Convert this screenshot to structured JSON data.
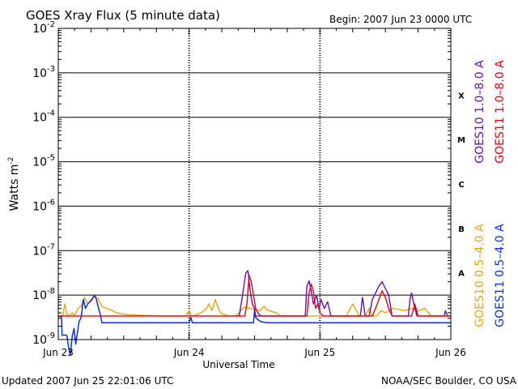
{
  "chart_data": {
    "type": "line",
    "title": "GOES Xray Flux (5 minute data)",
    "begin_label": "Begin:  2007 Jun 23 0000 UTC",
    "xlabel": "Universal Time",
    "ylabel": "Watts m",
    "ylabel_sup": "-2",
    "footer_left": "Updated 2007 Jun 25 22:01:06 UTC",
    "footer_right": "NOAA/SEC Boulder, CO USA",
    "x_unit": "hours since 2007 Jun 23 0000 UTC",
    "xlim": [
      0,
      72
    ],
    "ylim_log10": [
      -9,
      -2
    ],
    "y_scale": "log",
    "x_ticks": [
      {
        "label": "Jun 23",
        "value": 0
      },
      {
        "label": "Jun 24",
        "value": 24
      },
      {
        "label": "Jun 25",
        "value": 48
      },
      {
        "label": "Jun 26",
        "value": 72
      }
    ],
    "y_ticks": [
      {
        "base": "10",
        "exp": "-2",
        "value": -2
      },
      {
        "base": "10",
        "exp": "-3",
        "value": -3
      },
      {
        "base": "10",
        "exp": "-4",
        "value": -4
      },
      {
        "base": "10",
        "exp": "-5",
        "value": -5
      },
      {
        "base": "10",
        "exp": "-6",
        "value": -6
      },
      {
        "base": "10",
        "exp": "-7",
        "value": -7
      },
      {
        "base": "10",
        "exp": "-8",
        "value": -8
      },
      {
        "base": "10",
        "exp": "-9",
        "value": -9
      }
    ],
    "flare_classes": [
      {
        "label": "X",
        "value": -3.5
      },
      {
        "label": "M",
        "value": -4.5
      },
      {
        "label": "C",
        "value": -5.5
      },
      {
        "label": "B",
        "value": -6.5
      },
      {
        "label": "A",
        "value": -7.5
      }
    ],
    "legend": [
      {
        "label": "GOES10 1.0–8.0 A",
        "color": "#6a0dad"
      },
      {
        "label": "GOES11 1.0–8.0 A",
        "color": "#e8000f"
      },
      {
        "label": "GOES10 0.5–4.0 A",
        "color": "#f2a20a"
      },
      {
        "label": "GOES11 0.5–4.0 A",
        "color": "#0b2fd6"
      }
    ],
    "series": [
      {
        "name": "GOES10 0.5–4.0 A",
        "color": "#f2a20a",
        "x": [
          0,
          0.5,
          0.9,
          1.2,
          1.6,
          1.9,
          2.6,
          3.0,
          3.6,
          4.2,
          4.8,
          5.4,
          6.0,
          6.8,
          7.4,
          8.0,
          8.8,
          9.6,
          10.8,
          12.0,
          14.4,
          16.8,
          19.2,
          21.6,
          23.4,
          24.0,
          24.4,
          24.8,
          25.6,
          26.4,
          27.2,
          27.6,
          28.2,
          28.8,
          29.2,
          29.8,
          30.2,
          30.8,
          31.3,
          31.8,
          32.4,
          33.0,
          33.6,
          34.2,
          35.2,
          36.0,
          37.0,
          37.4,
          37.8,
          38.2,
          39.0,
          40.0,
          40.8,
          41.6,
          42.4,
          43.2,
          44.0,
          45.6,
          47.0,
          47.8,
          48.4,
          48.8,
          49.2,
          50.4,
          51.6,
          52.8,
          54.0,
          55.2,
          56.4,
          57.0,
          57.6,
          58.4,
          59.2,
          60.0,
          61.2,
          62.4,
          63.6,
          64.8,
          66.0,
          67.2,
          68.4,
          69.6,
          70.8,
          72.0
        ],
        "y": [
          -8.48,
          -8.48,
          -8.42,
          -8.2,
          -8.45,
          -8.47,
          -8.4,
          -8.47,
          -8.3,
          -8.25,
          -8.05,
          -8.2,
          -8.1,
          -8.02,
          -8.1,
          -8.25,
          -8.3,
          -8.33,
          -8.4,
          -8.43,
          -8.45,
          -8.46,
          -8.47,
          -8.47,
          -8.47,
          -8.35,
          -8.47,
          -8.47,
          -8.43,
          -8.38,
          -8.3,
          -8.2,
          -8.35,
          -8.1,
          -8.25,
          -8.4,
          -8.43,
          -8.45,
          -8.47,
          -8.47,
          -8.47,
          -8.42,
          -8.33,
          -8.27,
          -8.3,
          -8.33,
          -8.35,
          -8.3,
          -8.25,
          -8.33,
          -8.36,
          -8.4,
          -8.47,
          -8.47,
          -8.47,
          -8.47,
          -8.47,
          -8.47,
          -8.47,
          -8.47,
          -8.47,
          -8.47,
          -8.47,
          -8.47,
          -8.47,
          -8.47,
          -8.2,
          -8.47,
          -8.47,
          -8.3,
          -8.47,
          -8.47,
          -8.35,
          -8.4,
          -8.3,
          -8.32,
          -8.35,
          -8.3,
          -8.36,
          -8.3,
          -8.47,
          -8.47,
          -8.47,
          -8.47
        ]
      },
      {
        "name": "GOES11 0.5–4.0 A",
        "color": "#0b2fd6",
        "x": [
          0,
          0.6,
          0.7,
          1.0,
          1.2,
          1.4,
          1.6,
          1.8,
          2.0,
          2.2,
          2.4,
          2.6,
          2.9,
          3.2,
          3.5,
          3.8,
          4.2,
          4.6,
          5.0,
          5.4,
          5.8,
          6.2,
          6.6,
          7.0,
          7.4,
          7.8,
          8.0,
          24.0,
          24.3,
          24.6,
          24.9,
          25.2,
          28.8,
          30.0,
          31.2,
          32.4,
          33.6,
          34.8,
          35.8,
          36.0,
          36.2,
          36.6,
          37.2,
          38.4,
          40.8,
          43.2,
          45.6,
          48.0,
          48.6,
          49.2,
          50.4,
          52.8,
          55.2,
          57.6,
          60.0,
          62.4,
          64.8,
          67.2,
          69.6,
          72.0
        ],
        "y": [
          -8.48,
          -8.48,
          -8.9,
          -8.9,
          -8.9,
          -8.9,
          -8.92,
          -9.1,
          -9.25,
          -9.35,
          -9.1,
          -8.9,
          -8.75,
          -9.1,
          -8.85,
          -8.6,
          -8.5,
          -8.1,
          -8.3,
          -8.2,
          -8.15,
          -8.1,
          -8.0,
          -8.1,
          -8.3,
          -8.48,
          -8.62,
          -8.62,
          -8.5,
          -8.62,
          -8.62,
          -8.62,
          -8.62,
          -8.62,
          -8.62,
          -8.62,
          -8.62,
          -8.62,
          -8.62,
          -8.35,
          -8.5,
          -8.55,
          -8.6,
          -8.62,
          -8.62,
          -8.62,
          -8.62,
          -8.62,
          -8.62,
          -8.62,
          -8.62,
          -8.62,
          -8.62,
          -8.62,
          -8.62,
          -8.62,
          -8.62,
          -8.62,
          -8.62,
          -8.62
        ]
      },
      {
        "name": "GOES10 1.0–8.0 A",
        "color": "#6a0dad",
        "x": [
          32.6,
          33.2,
          33.8,
          34.4,
          34.8,
          35.2,
          35.6,
          36.0,
          36.2,
          45.0,
          45.3,
          45.6,
          46.0,
          46.4,
          46.8,
          47.4,
          47.8,
          48.2,
          48.8,
          49.4,
          50.0,
          50.6,
          51.2,
          52.0,
          53.0,
          54.0,
          55.0,
          55.4,
          55.8,
          56.3,
          57.0,
          57.6,
          58.0,
          58.4,
          58.8,
          59.4,
          60.0,
          60.6,
          61.2,
          61.8,
          62.4,
          63.0,
          63.6,
          64.2,
          64.5,
          64.8,
          65.2,
          65.8,
          66.4,
          67.0,
          67.6,
          68.2,
          69.0,
          70.8,
          71.0,
          71.4,
          72.0
        ],
        "y": [
          -8.47,
          -8.47,
          -8.0,
          -7.5,
          -7.45,
          -7.9,
          -8.2,
          -8.3,
          -8.47,
          -8.47,
          -8.47,
          -7.8,
          -7.68,
          -7.9,
          -8.2,
          -8.0,
          -8.3,
          -8.1,
          -8.3,
          -8.15,
          -8.47,
          -8.47,
          -8.47,
          -8.47,
          -8.47,
          -8.47,
          -8.47,
          -8.47,
          -8.05,
          -8.47,
          -8.47,
          -8.1,
          -8.0,
          -7.9,
          -7.8,
          -7.7,
          -7.85,
          -8.0,
          -8.47,
          -8.47,
          -8.47,
          -8.47,
          -8.47,
          -8.47,
          -8.1,
          -7.95,
          -8.2,
          -8.47,
          -8.47,
          -8.47,
          -8.47,
          -8.47,
          -8.47,
          -8.47,
          -8.35,
          -8.47,
          -8.47
        ]
      },
      {
        "name": "GOES11 1.0–8.0 A",
        "color": "#e8000f",
        "x": [
          0,
          2.4,
          4.8,
          7.2,
          9.6,
          12.0,
          14.4,
          16.8,
          19.2,
          21.6,
          24.0,
          26.4,
          28.8,
          31.2,
          33.0,
          34.2,
          34.6,
          35.0,
          35.4,
          35.8,
          36.2,
          36.6,
          37.2,
          38.4,
          40.8,
          43.2,
          45.6,
          46.0,
          46.4,
          46.8,
          47.2,
          47.6,
          48.0,
          48.6,
          49.2,
          50.4,
          52.8,
          55.2,
          57.6,
          58.2,
          58.8,
          59.4,
          60.0,
          60.6,
          61.2,
          62.4,
          64.8,
          65.4,
          66.0,
          67.2,
          69.6,
          72.0
        ],
        "y": [
          -8.47,
          -8.47,
          -8.47,
          -8.47,
          -8.47,
          -8.47,
          -8.47,
          -8.47,
          -8.47,
          -8.47,
          -8.47,
          -8.47,
          -8.47,
          -8.47,
          -8.47,
          -8.47,
          -8.2,
          -7.55,
          -7.7,
          -8.0,
          -8.3,
          -8.4,
          -8.47,
          -8.47,
          -8.47,
          -8.47,
          -8.47,
          -7.95,
          -7.75,
          -7.9,
          -8.3,
          -8.2,
          -8.4,
          -8.47,
          -8.47,
          -8.47,
          -8.47,
          -8.47,
          -8.47,
          -8.3,
          -8.1,
          -7.9,
          -8.05,
          -8.3,
          -8.47,
          -8.47,
          -8.47,
          -8.2,
          -8.47,
          -8.47,
          -8.47,
          -8.47
        ]
      }
    ]
  }
}
